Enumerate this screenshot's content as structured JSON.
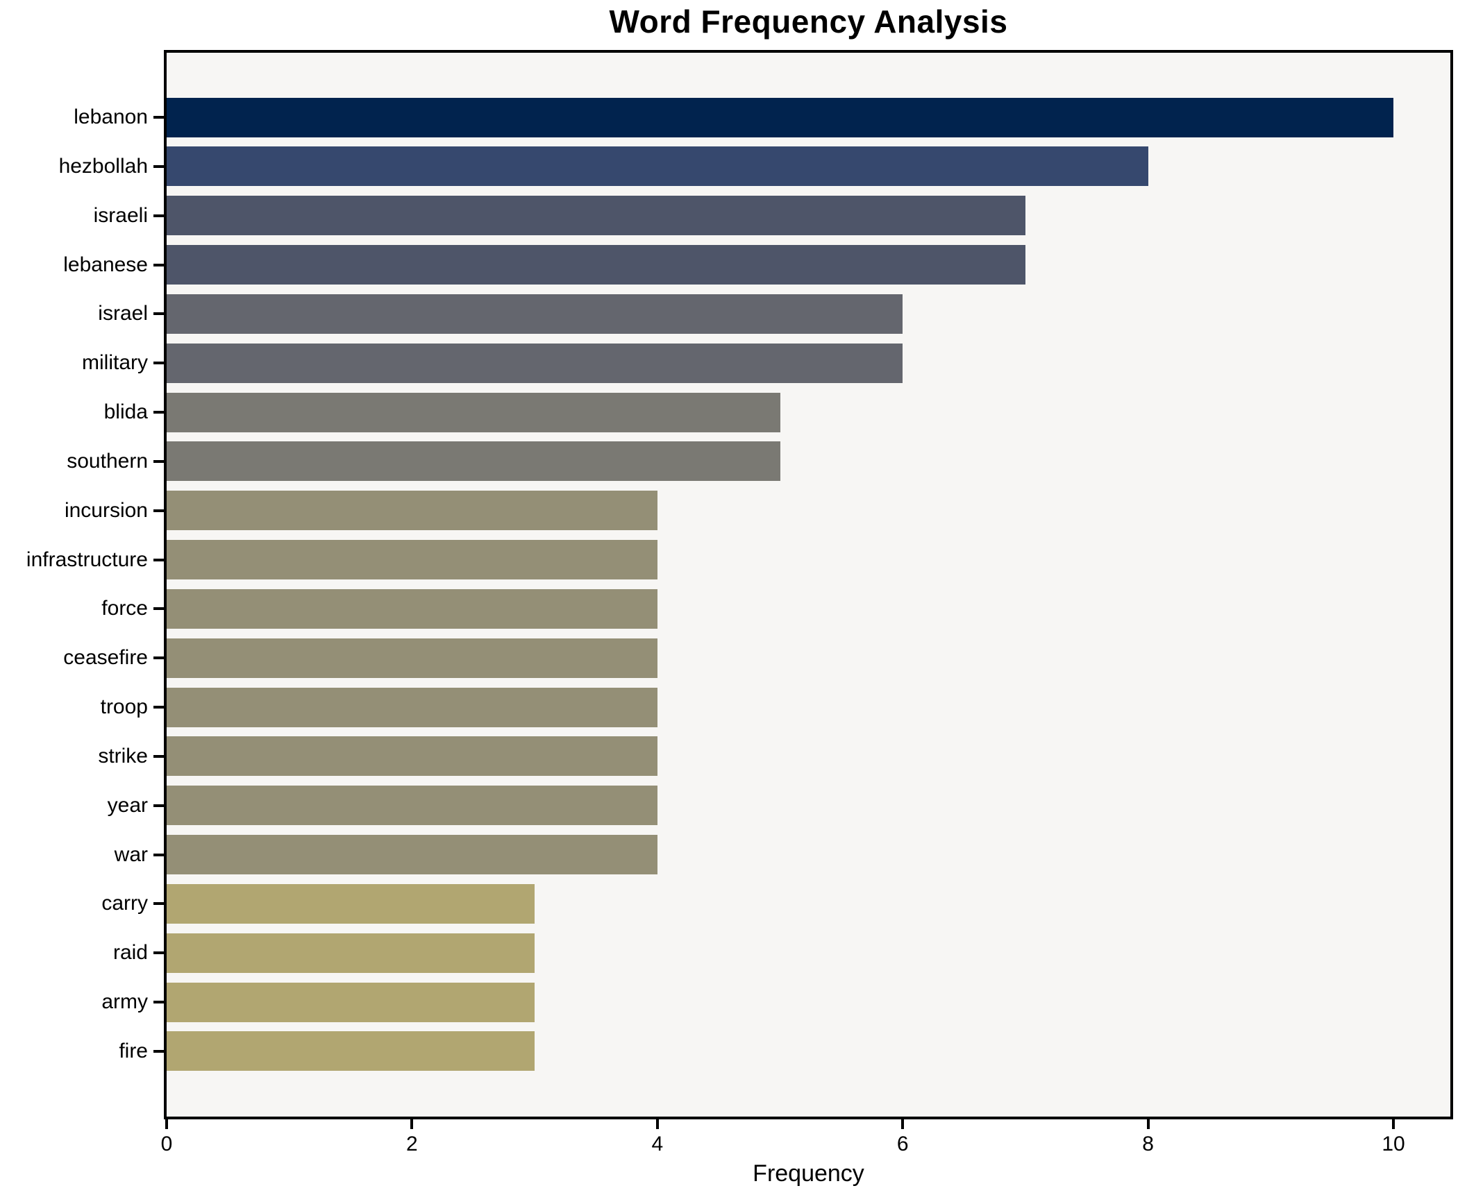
{
  "chart_data": {
    "type": "bar",
    "orientation": "horizontal",
    "title": "Word Frequency Analysis",
    "xlabel": "Frequency",
    "ylabel": "",
    "categories": [
      "lebanon",
      "hezbollah",
      "israeli",
      "lebanese",
      "israel",
      "military",
      "blida",
      "southern",
      "incursion",
      "infrastructure",
      "force",
      "ceasefire",
      "troop",
      "strike",
      "year",
      "war",
      "carry",
      "raid",
      "army",
      "fire"
    ],
    "values": [
      10,
      8,
      7,
      7,
      6,
      6,
      5,
      5,
      4,
      4,
      4,
      4,
      4,
      4,
      4,
      4,
      3,
      3,
      3,
      3
    ],
    "bar_colors": [
      "#01234e",
      "#36486e",
      "#4e5569",
      "#4e5569",
      "#64666e",
      "#64666e",
      "#7a7973",
      "#7a7973",
      "#948f76",
      "#948f76",
      "#948f76",
      "#948f76",
      "#948f76",
      "#948f76",
      "#948f76",
      "#948f76",
      "#b1a671",
      "#b1a671",
      "#b1a671",
      "#b1a671"
    ],
    "x_ticks": [
      "0",
      "2",
      "4",
      "6",
      "8",
      "10"
    ],
    "x_tick_values": [
      0,
      2,
      4,
      6,
      8,
      10
    ],
    "xlim": [
      0,
      10.49
    ],
    "grid": false,
    "legend": null,
    "colors": {
      "figure_background": "#ffffff",
      "plot_background": "#f7f6f4",
      "spine": "#000000",
      "text": "#000000"
    }
  }
}
